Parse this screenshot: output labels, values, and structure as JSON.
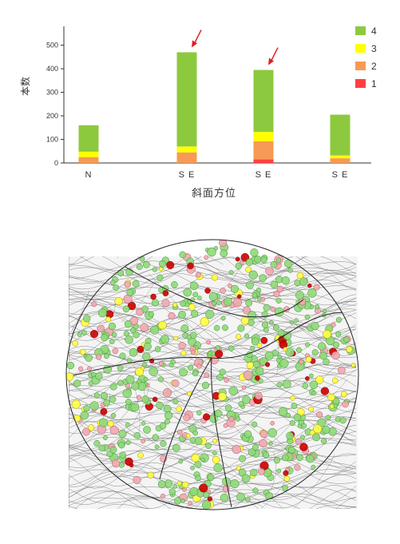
{
  "chart_data": {
    "type": "bar",
    "stacked": true,
    "categories": [
      "N",
      "S E",
      "S E",
      "S E"
    ],
    "series": [
      {
        "name": "1",
        "color": "#ff4040",
        "values": [
          0,
          0,
          15,
          0
        ]
      },
      {
        "name": "2",
        "color": "#f79a55",
        "values": [
          25,
          45,
          77,
          20
        ]
      },
      {
        "name": "3",
        "color": "#ffff00",
        "values": [
          23,
          25,
          40,
          12
        ]
      },
      {
        "name": "4",
        "color": "#8dc93e",
        "values": [
          112,
          400,
          263,
          173
        ]
      }
    ],
    "legend_order": [
      "4",
      "3",
      "2",
      "1"
    ],
    "legend_position": "top-right",
    "ylabel": "本数",
    "xlabel": "斜面方位",
    "yticks": [
      0,
      100,
      200,
      300,
      400,
      500
    ],
    "ylim": [
      0,
      580
    ],
    "grid": false,
    "annotations": [
      {
        "type": "arrow",
        "color": "#e02020",
        "target_category_index": 1
      },
      {
        "type": "arrow",
        "color": "#e02020",
        "target_category_index": 2
      }
    ]
  },
  "map": {
    "type": "contour-map",
    "marker_colors": {
      "1": "#cc0000",
      "2": "#f0a8b0",
      "3": "#ffff40",
      "4": "#90d878"
    }
  }
}
